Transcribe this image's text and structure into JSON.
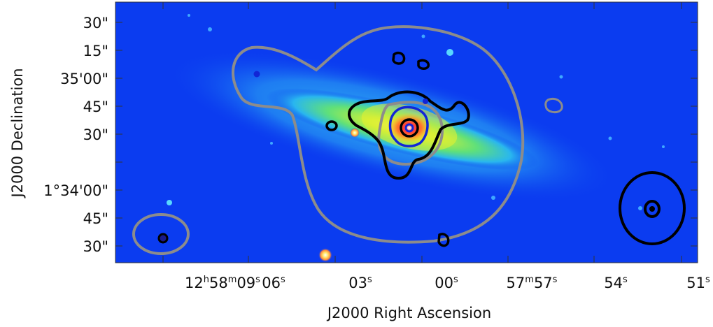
{
  "figure": {
    "x_axis_title": "J2000 Right Ascension",
    "y_axis_title": "J2000 Declination",
    "y_ticks": [
      {
        "text": "30\""
      },
      {
        "text": "15\""
      },
      {
        "text": "35'00\""
      },
      {
        "text": "45\""
      },
      {
        "text": "30\""
      },
      {
        "text": "1°34'00\""
      },
      {
        "text": "45\""
      },
      {
        "text": "30\""
      }
    ],
    "x_ticks": [
      {
        "base": "12",
        "sup1": "h",
        "mid": "58",
        "sup2": "m",
        "num": "09",
        "sup3": "s"
      },
      {
        "num": "06",
        "sup3": "s"
      },
      {
        "num": "03",
        "sup3": "s"
      },
      {
        "num": "00",
        "sup3": "s"
      },
      {
        "mid": "57",
        "sup2": "m",
        "num": "57",
        "sup3": "s"
      },
      {
        "num": "54",
        "sup3": "s"
      },
      {
        "num": "51",
        "sup3": "s"
      }
    ],
    "colors": {
      "background_blue": "#0b3cf0",
      "galaxy_green": "#7ee05a",
      "galaxy_yellow": "#e8f030",
      "core_red": "#ff2d2d",
      "contour_gray": "#8c8c8c",
      "contour_black": "#000000",
      "contour_blue": "#1226d6",
      "beam_black": "#000000"
    }
  }
}
